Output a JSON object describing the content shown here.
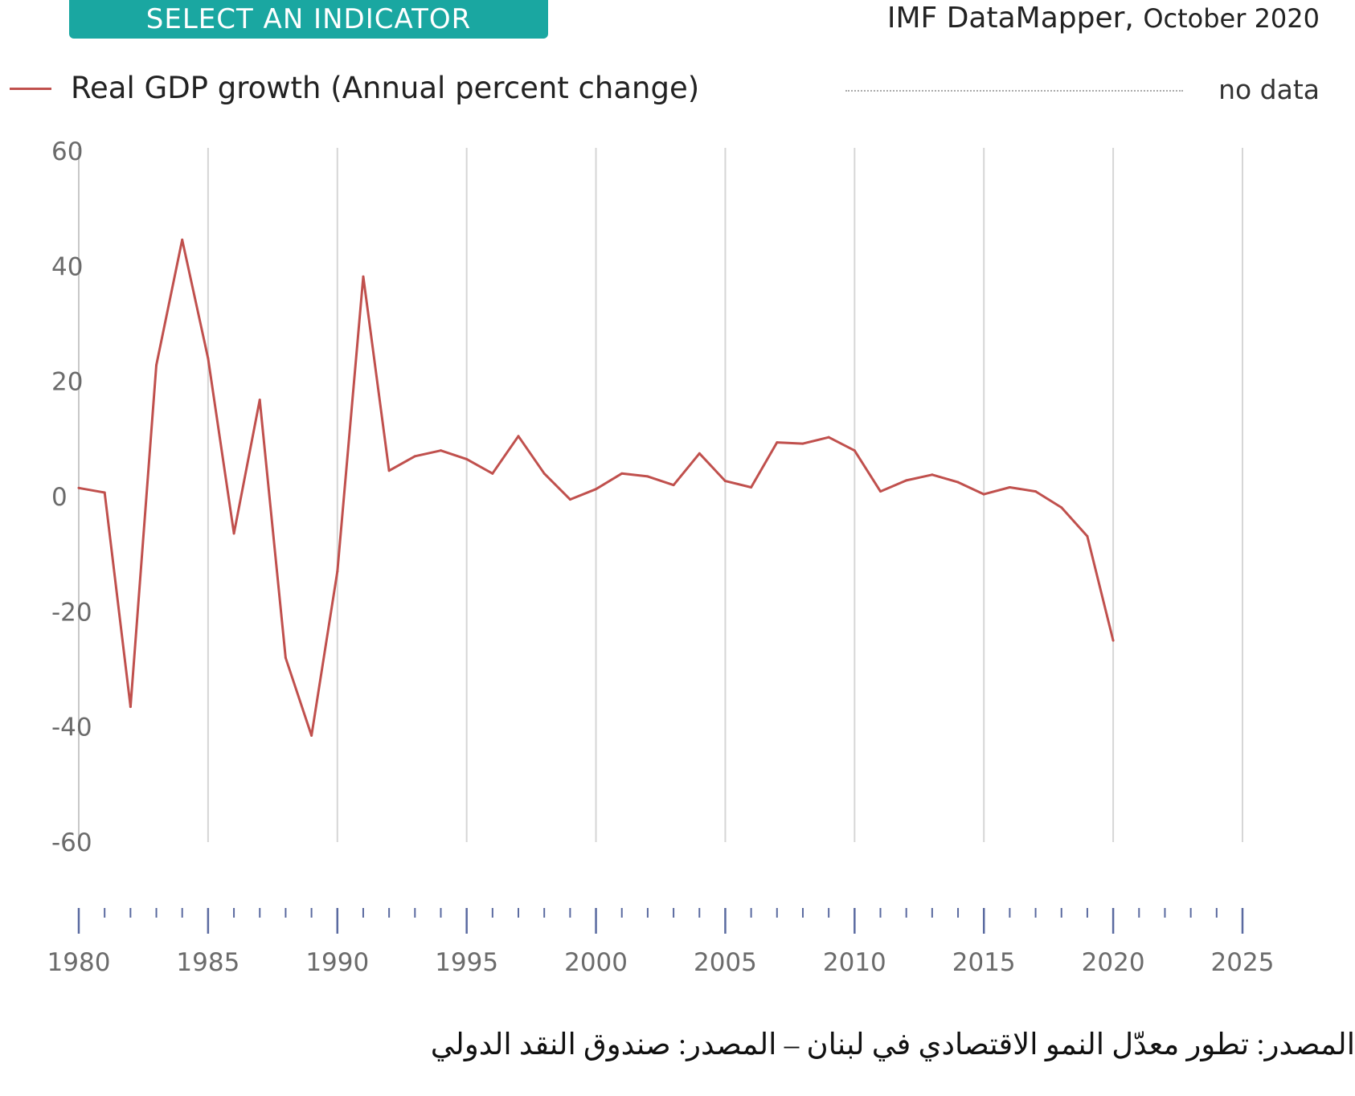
{
  "header": {
    "select_label": "SELECT AN INDICATOR",
    "brand": "IMF DataMapper,",
    "edition": "October 2020"
  },
  "legend": {
    "series_label": "Real GDP growth (Annual percent change)",
    "no_data_label": "no data",
    "series_color": "#c0504d"
  },
  "chart_data": {
    "type": "line",
    "title": "Real GDP growth (Annual percent change)",
    "xlabel": "",
    "ylabel": "",
    "xlim": [
      1980,
      2025
    ],
    "ylim": [
      -60,
      60
    ],
    "y_ticks": [
      "60",
      "40",
      "20",
      "0",
      "-20",
      "-40",
      "-60"
    ],
    "x_ticks": [
      "1980",
      "1985",
      "1990",
      "1995",
      "2000",
      "2005",
      "2010",
      "2015",
      "2020",
      "2025"
    ],
    "grid": "vertical",
    "legend_position": "top-left",
    "series": [
      {
        "name": "Real GDP growth (Annual percent change)",
        "color": "#c0504d",
        "x": [
          1980,
          1981,
          1982,
          1983,
          1984,
          1985,
          1986,
          1987,
          1988,
          1989,
          1990,
          1991,
          1992,
          1993,
          1994,
          1995,
          1996,
          1997,
          1998,
          1999,
          2000,
          2001,
          2002,
          2003,
          2004,
          2005,
          2006,
          2007,
          2008,
          2009,
          2010,
          2011,
          2012,
          2013,
          2014,
          2015,
          2016,
          2017,
          2018,
          2019,
          2020
        ],
        "values": [
          1.5,
          0.7,
          -36.5,
          22.8,
          44.6,
          24.0,
          -6.4,
          16.8,
          -28.0,
          -41.5,
          -13.0,
          38.2,
          4.5,
          7.0,
          8.0,
          6.5,
          4.0,
          10.5,
          4.0,
          -0.5,
          1.3,
          4.0,
          3.5,
          2.0,
          7.5,
          2.7,
          1.6,
          9.4,
          9.2,
          10.3,
          8.0,
          0.9,
          2.8,
          3.8,
          2.5,
          0.4,
          1.6,
          0.9,
          -1.9,
          -6.9,
          -25.0
        ]
      }
    ]
  },
  "caption": "المصدر: تطور معدّل النمو الاقتصادي في لبنان – المصدر: صندوق النقد الدولي"
}
